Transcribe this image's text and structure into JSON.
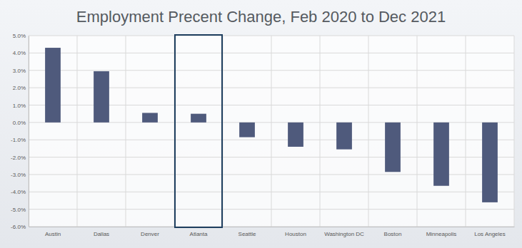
{
  "chart_data": {
    "type": "bar",
    "title": "Employment Precent Change, Feb 2020 to Dec 2021",
    "categories": [
      "Austin",
      "Dallas",
      "Denver",
      "Atlanta",
      "Seattle",
      "Houston",
      "Washington DC",
      "Boston",
      "Minneapolis",
      "Los Angeles"
    ],
    "values": [
      4.3,
      2.95,
      0.55,
      0.5,
      -0.85,
      -1.4,
      -1.55,
      -2.85,
      -3.65,
      -4.6
    ],
    "color": "#4f5a7c",
    "ylim": [
      -6,
      5
    ],
    "yticks": [
      {
        "value": -6,
        "label": "-6.0%"
      },
      {
        "value": -5,
        "label": "-5.0%"
      },
      {
        "value": -4,
        "label": "-4.0%"
      },
      {
        "value": -3,
        "label": "-3.0%"
      },
      {
        "value": -2,
        "label": "-2.0%"
      },
      {
        "value": -1,
        "label": "-1.0%"
      },
      {
        "value": 0,
        "label": "0.0%"
      },
      {
        "value": 1,
        "label": "1.0%"
      },
      {
        "value": 2,
        "label": "2.0%"
      },
      {
        "value": 3,
        "label": "3.0%"
      },
      {
        "value": 4,
        "label": "4.0%"
      },
      {
        "value": 5,
        "label": "5.0%"
      }
    ],
    "grid": true
  }
}
